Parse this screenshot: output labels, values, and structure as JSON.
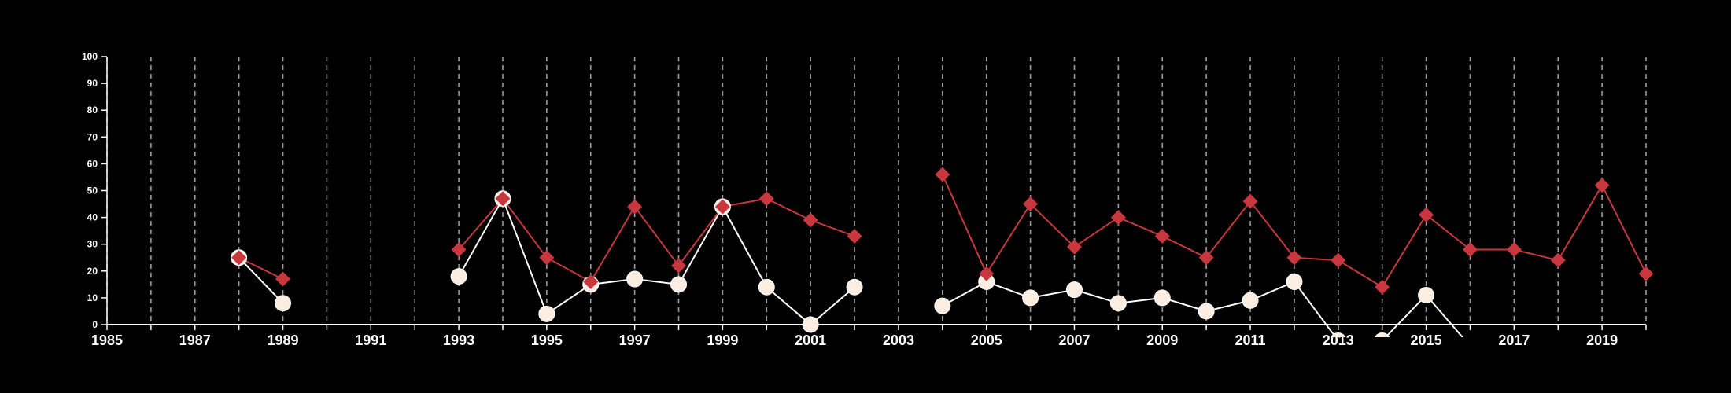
{
  "chart_data": {
    "type": "line",
    "x": [
      1985,
      1986,
      1987,
      1988,
      1989,
      1990,
      1991,
      1992,
      1993,
      1994,
      1995,
      1996,
      1997,
      1998,
      1999,
      2000,
      2001,
      2002,
      2003,
      2004,
      2005,
      2006,
      2007,
      2008,
      2009,
      2010,
      2011,
      2012,
      2013,
      2014,
      2015,
      2016,
      2017,
      2018,
      2019,
      2020
    ],
    "xlim": [
      1985,
      2020
    ],
    "ylim": [
      0,
      100
    ],
    "x_ticks": [
      1985,
      1987,
      1989,
      1991,
      1993,
      1995,
      1997,
      1999,
      2001,
      2003,
      2005,
      2007,
      2009,
      2011,
      2013,
      2015,
      2017,
      2019
    ],
    "y_ticks": [
      0,
      10,
      20,
      30,
      40,
      50,
      60,
      70,
      80,
      90,
      100
    ],
    "grid": "vertical dashed",
    "series": [
      {
        "marker": "diamond",
        "color": "#c8373d",
        "values": [
          null,
          null,
          null,
          25,
          17,
          null,
          null,
          null,
          28,
          47,
          25,
          16,
          44,
          22,
          44,
          47,
          39,
          33,
          null,
          56,
          19,
          45,
          29,
          40,
          33,
          25,
          46,
          25,
          24,
          14,
          41,
          28,
          28,
          24,
          52,
          19
        ]
      },
      {
        "marker": "circle",
        "color": "#fbeee0",
        "line_color": "#ffffff",
        "values": [
          null,
          null,
          null,
          25,
          8,
          null,
          null,
          null,
          18,
          47,
          4,
          15,
          17,
          15,
          44,
          14,
          0,
          14,
          null,
          7,
          16,
          10,
          13,
          8,
          10,
          5,
          9,
          16,
          -6,
          -6,
          11,
          -8,
          null,
          null,
          null,
          null
        ]
      }
    ]
  }
}
